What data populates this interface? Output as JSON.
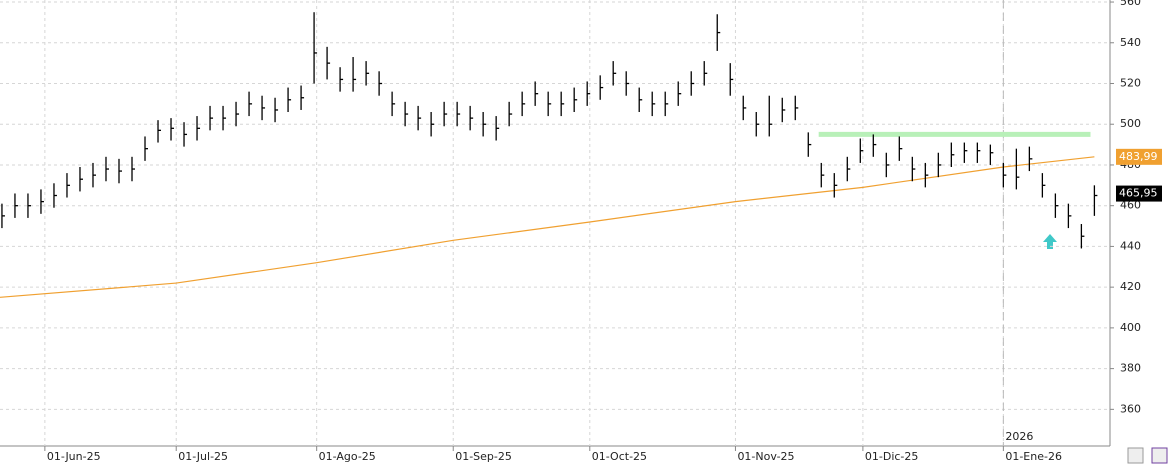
{
  "chart_data": {
    "type": "ohlc",
    "xlim": [
      -0.15,
      85.2
    ],
    "ylim": [
      342,
      561
    ],
    "yticks": [
      360,
      380,
      400,
      420,
      440,
      460,
      480,
      500,
      520,
      540,
      560
    ],
    "xticks": [
      {
        "value": 3.3,
        "label": "01-Jun-25"
      },
      {
        "value": 13.4,
        "label": "01-Jul-25"
      },
      {
        "value": 24.2,
        "label": "01-Ago-25"
      },
      {
        "value": 34.7,
        "label": "01-Sep-25"
      },
      {
        "value": 45.2,
        "label": "01-Oct-25"
      },
      {
        "value": 56.4,
        "label": "01-Nov-25"
      },
      {
        "value": 66.2,
        "label": "01-Dic-25"
      },
      {
        "value": 77,
        "label": "01-Ene-26"
      }
    ],
    "grid": true,
    "series": [
      {
        "color": "#000000",
        "high": [
          461,
          466,
          466,
          468,
          471,
          476,
          479,
          481,
          484,
          483,
          484,
          494,
          502,
          503,
          501,
          504,
          509,
          509,
          511,
          516,
          514,
          513,
          518,
          519,
          555,
          538,
          528,
          533,
          531,
          526,
          516,
          511,
          509,
          506,
          511,
          511,
          509,
          506,
          504,
          511,
          516,
          521,
          516,
          516,
          518,
          521,
          524,
          531,
          526,
          518,
          516,
          516,
          521,
          526,
          531,
          554,
          530,
          514,
          506,
          514,
          513,
          514,
          496,
          481,
          476,
          484,
          493,
          495,
          486,
          494,
          484,
          481,
          486,
          491,
          491,
          491,
          490,
          481,
          488,
          489,
          476,
          466,
          461,
          451,
          470
        ],
        "low": [
          449,
          454,
          454,
          456,
          459,
          464,
          467,
          469,
          472,
          471,
          472,
          482,
          491,
          492,
          489,
          492,
          497,
          497,
          499,
          504,
          502,
          501,
          506,
          507,
          520,
          522,
          516,
          516,
          519,
          514,
          504,
          499,
          497,
          494,
          499,
          499,
          497,
          494,
          492,
          499,
          504,
          509,
          504,
          504,
          506,
          509,
          512,
          519,
          514,
          506,
          504,
          504,
          509,
          514,
          519,
          536,
          514,
          502,
          494,
          494,
          501,
          502,
          484,
          469,
          464,
          472,
          481,
          484,
          474,
          482,
          472,
          469,
          474,
          479,
          481,
          481,
          480,
          469,
          468,
          477,
          464,
          454,
          449,
          439,
          455
        ],
        "close": [
          455,
          460,
          460,
          462,
          465,
          470,
          473,
          475,
          478,
          477,
          478,
          488,
          497,
          498,
          495,
          498,
          503,
          503,
          505,
          510,
          508,
          507,
          512,
          513,
          535,
          530,
          522,
          522,
          525,
          520,
          510,
          505,
          503,
          500,
          505,
          505,
          503,
          500,
          498,
          505,
          510,
          515,
          510,
          510,
          512,
          515,
          518,
          525,
          520,
          512,
          510,
          510,
          515,
          520,
          525,
          545,
          522,
          508,
          500,
          500,
          507,
          508,
          490,
          475,
          470,
          478,
          487,
          490,
          480,
          488,
          478,
          475,
          480,
          485,
          487,
          487,
          486,
          475,
          474,
          483,
          470,
          460,
          455,
          445,
          465
        ]
      }
    ],
    "moving_average": {
      "color": "#f0a030",
      "x": [
        -0.15,
        13.4,
        24.2,
        34.7,
        45.2,
        56.4,
        66.2,
        77,
        84
      ],
      "values": [
        415,
        422,
        432,
        443,
        452,
        462,
        469,
        479,
        484
      ]
    },
    "level": {
      "color": "#b8f0b8",
      "value": 495,
      "x": [
        62.8,
        83.7
      ]
    },
    "price_labels": [
      {
        "value": 483.99,
        "label": "483,99",
        "color": "#f0a030"
      },
      {
        "value": 465.95,
        "label": "465,95",
        "color": "#000000"
      }
    ],
    "marker": {
      "x": 77,
      "label": "2026"
    }
  }
}
